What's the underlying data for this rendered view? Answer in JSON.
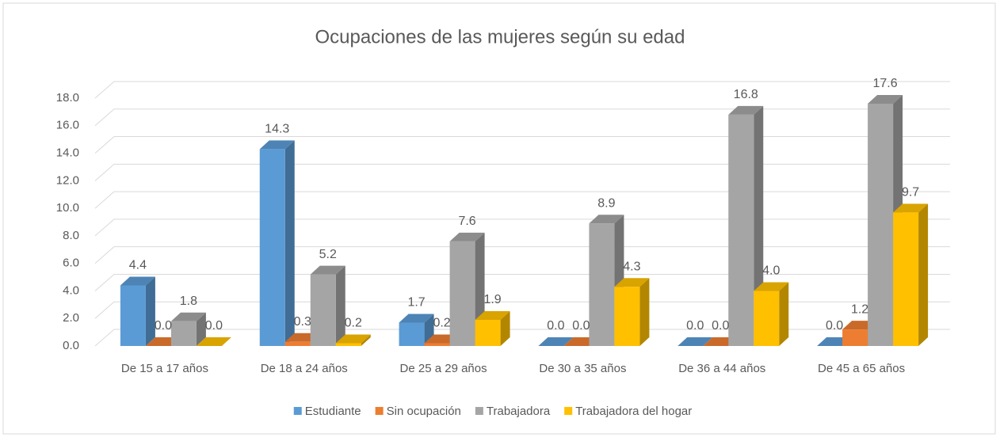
{
  "chart_data": {
    "type": "bar3d",
    "title": "Ocupaciones de las mujeres según su edad",
    "categories": [
      "De 15 a 17 años",
      "De 18 a 24 años",
      "De 25 a 29 años",
      "De 30 a 35 años",
      "De 36 a 44 años",
      "De 45 a 65 años"
    ],
    "series": [
      {
        "name": "Estudiante",
        "color": "#5b9bd5",
        "values": [
          4.4,
          14.3,
          1.7,
          0.0,
          0.0,
          0.0
        ],
        "value_labels": [
          "4.4",
          "14.3",
          "1.7",
          "0.0",
          "0.0",
          "0.0"
        ]
      },
      {
        "name": "Sin ocupación",
        "color": "#ed7d31",
        "values": [
          0.0,
          0.3,
          0.2,
          0.0,
          0.0,
          1.2
        ],
        "value_labels": [
          "0.0",
          "0.3",
          "0.2",
          "0.0",
          "0.0",
          "1.2"
        ]
      },
      {
        "name": "Trabajadora",
        "color": "#a5a5a5",
        "values": [
          1.8,
          5.2,
          7.6,
          8.9,
          16.8,
          17.6
        ],
        "value_labels": [
          "1.8",
          "5.2",
          "7.6",
          "8.9",
          "16.8",
          "17.6"
        ]
      },
      {
        "name": "Trabajadora del hogar",
        "color": "#ffc000",
        "values": [
          0.0,
          0.2,
          1.9,
          4.3,
          4.0,
          9.7
        ],
        "value_labels": [
          "0.0",
          "0.2",
          "1.9",
          "4.3",
          "4.0",
          "9.7"
        ]
      }
    ],
    "ylim": [
      0,
      18
    ],
    "yticks": [
      {
        "value": 0,
        "label": "0.0"
      },
      {
        "value": 2,
        "label": "2.0"
      },
      {
        "value": 4,
        "label": "4.0"
      },
      {
        "value": 6,
        "label": "6.0"
      },
      {
        "value": 8,
        "label": "8.0"
      },
      {
        "value": 10,
        "label": "10.0"
      },
      {
        "value": 12,
        "label": "12.0"
      },
      {
        "value": 14,
        "label": "14.0"
      },
      {
        "value": 16,
        "label": "16.0"
      },
      {
        "value": 18,
        "label": "18.0"
      }
    ],
    "grid": true,
    "legend": "bottom"
  }
}
